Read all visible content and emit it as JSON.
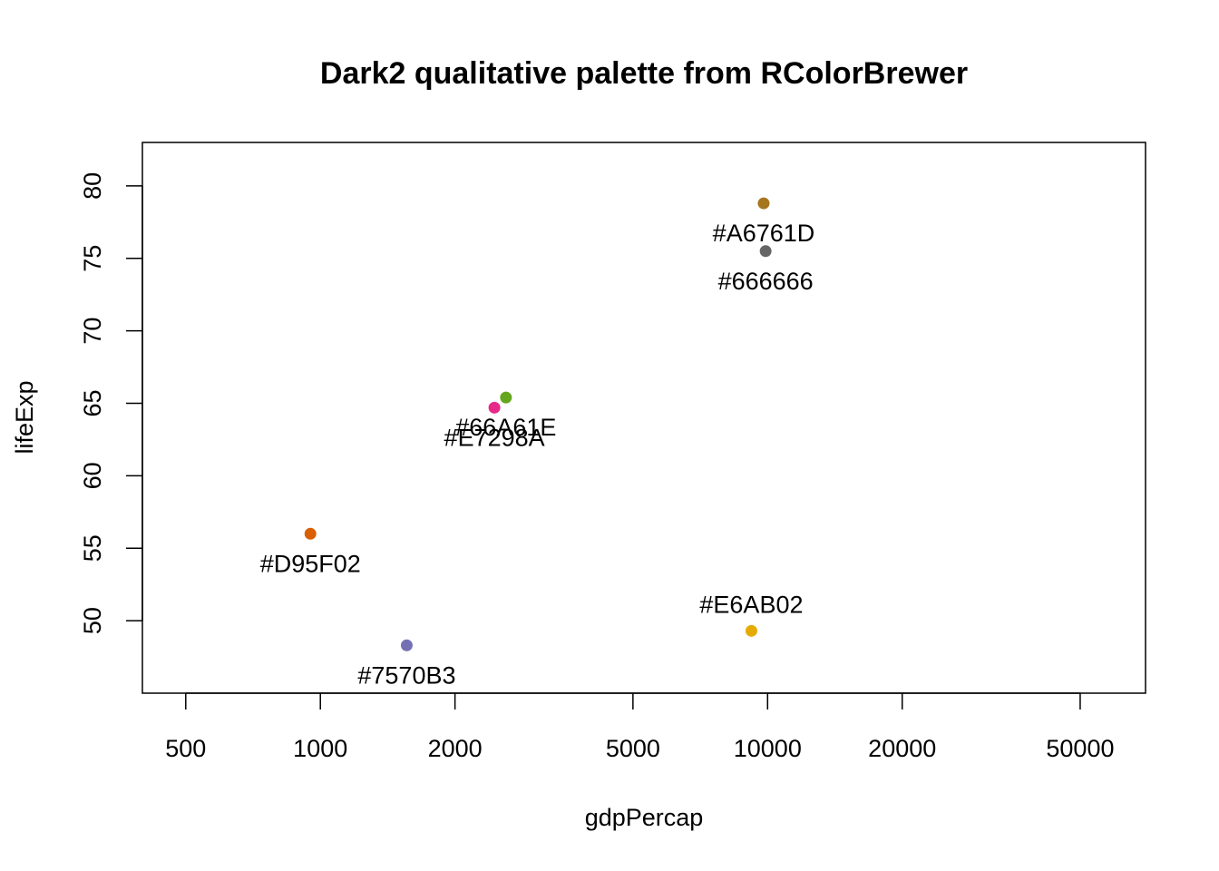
{
  "chart_data": {
    "type": "scatter",
    "title": "Dark2 qualitative palette from RColorBrewer",
    "xlabel": "gdpPercap",
    "ylabel": "lifeExp",
    "x_scale": "log",
    "xlim": [
      400,
      70000
    ],
    "ylim": [
      45,
      83
    ],
    "x_ticks": [
      500,
      1000,
      2000,
      5000,
      10000,
      20000,
      50000
    ],
    "y_ticks": [
      50,
      55,
      60,
      65,
      70,
      75,
      80
    ],
    "grid": false,
    "legend": "none",
    "points": [
      {
        "x": 9800,
        "y": 78.8,
        "color": "#A6761D",
        "label": "#A6761D",
        "label_pos": "below"
      },
      {
        "x": 9900,
        "y": 75.5,
        "color": "#666666",
        "label": "#666666",
        "label_pos": "below"
      },
      {
        "x": 2600,
        "y": 65.4,
        "color": "#66A61E",
        "label": "#66A61E",
        "label_pos": "below"
      },
      {
        "x": 2450,
        "y": 64.7,
        "color": "#E7298A",
        "label": "#E7298A",
        "label_pos": "below"
      },
      {
        "x": 950,
        "y": 56.0,
        "color": "#D95F02",
        "label": "#D95F02",
        "label_pos": "below"
      },
      {
        "x": 1560,
        "y": 48.3,
        "color": "#7570B3",
        "label": "#7570B3",
        "label_pos": "below"
      },
      {
        "x": 9200,
        "y": 49.3,
        "color": "#E6AB02",
        "label": "#E6AB02",
        "label_pos": "above"
      }
    ]
  }
}
